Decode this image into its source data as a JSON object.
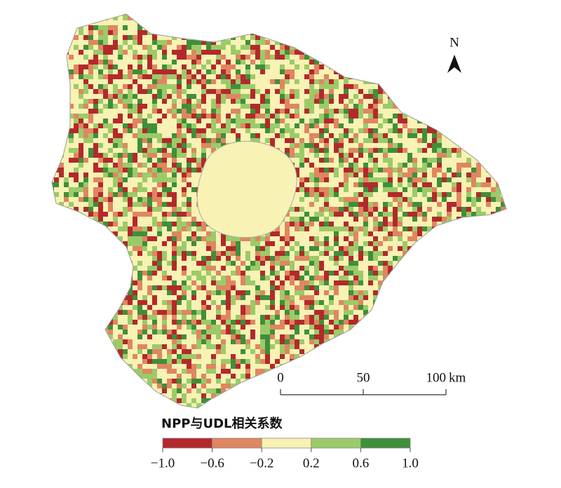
{
  "map": {
    "north_label": "N",
    "scale_bar": {
      "ticks": [
        0,
        50,
        100
      ],
      "unit": "km"
    },
    "legend": {
      "title": "NPP与UDL相关系数",
      "ticks": [
        {
          "value": -1.0,
          "label": "−1.0"
        },
        {
          "value": -0.6,
          "label": "−0.6"
        },
        {
          "value": -0.2,
          "label": "−0.2"
        },
        {
          "value": 0.2,
          "label": "0.2"
        },
        {
          "value": 0.6,
          "label": "0.6"
        },
        {
          "value": 1.0,
          "label": "1.0"
        }
      ],
      "colors": [
        "#b3292b",
        "#e08660",
        "#f8f2b4",
        "#9bcb69",
        "#3f8f3a"
      ]
    }
  }
}
